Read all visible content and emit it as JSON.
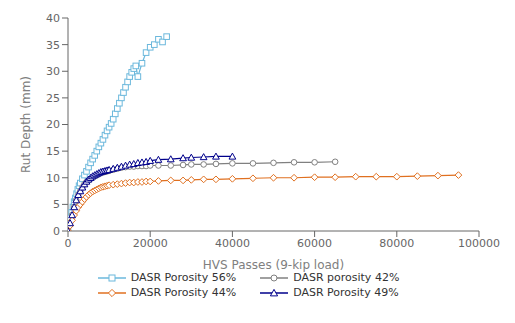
{
  "chart_data": {
    "type": "line",
    "xlabel": "HVS Passes (9-kip load)",
    "ylabel": "Rut Depth (mm)",
    "xlim": [
      0,
      100000
    ],
    "ylim": [
      0,
      40
    ],
    "xticks": [
      0,
      20000,
      40000,
      60000,
      80000,
      100000
    ],
    "yticks": [
      0,
      5,
      10,
      15,
      20,
      25,
      30,
      35,
      40
    ],
    "grid": false,
    "legend": "bottom",
    "series": [
      {
        "name": "DASR Porosity 56%",
        "color": "#6BB8DC",
        "marker": "square",
        "x": [
          0,
          300,
          600,
          900,
          1200,
          1500,
          1800,
          2100,
          2400,
          2700,
          3000,
          3500,
          4000,
          4500,
          5000,
          5500,
          6000,
          6500,
          7000,
          7500,
          8000,
          8500,
          9000,
          9500,
          10000,
          10500,
          11000,
          11500,
          12000,
          12500,
          13000,
          13500,
          14000,
          14500,
          15000,
          15500,
          16000,
          16500,
          17000,
          18000,
          19000,
          20000,
          21000,
          22000,
          23000,
          24000
        ],
        "values": [
          0,
          1.5,
          2.5,
          3.5,
          4.5,
          5.5,
          6.2,
          7.0,
          7.8,
          8.5,
          9.0,
          9.8,
          10.5,
          11.2,
          12.0,
          12.8,
          13.5,
          14.2,
          15.0,
          15.8,
          16.5,
          17.2,
          18.0,
          18.8,
          19.5,
          20.2,
          21.0,
          22.0,
          23.0,
          24.0,
          25.0,
          26.0,
          27.0,
          28.0,
          29.0,
          29.8,
          30.5,
          31.0,
          29.0,
          31.5,
          33.5,
          34.5,
          35.0,
          36.0,
          35.5,
          36.5
        ]
      },
      {
        "name": "DASR porosity 42%",
        "color": "#808080",
        "marker": "circle",
        "x": [
          0,
          500,
          1000,
          1500,
          2000,
          2500,
          3000,
          3500,
          4000,
          4500,
          5000,
          5500,
          6000,
          6500,
          7000,
          7500,
          8000,
          8500,
          9000,
          9500,
          10000,
          11000,
          12000,
          13000,
          14000,
          15000,
          16000,
          17000,
          18000,
          19000,
          20000,
          22000,
          25000,
          28000,
          30000,
          33000,
          36000,
          40000,
          45000,
          50000,
          55000,
          60000,
          65000
        ],
        "values": [
          0,
          1.5,
          3.0,
          4.5,
          5.8,
          6.8,
          7.5,
          8.2,
          8.8,
          9.2,
          9.5,
          9.8,
          10.0,
          10.3,
          10.5,
          10.7,
          10.9,
          11.0,
          11.1,
          11.2,
          11.3,
          11.5,
          11.7,
          11.9,
          12.0,
          12.1,
          12.1,
          12.2,
          12.2,
          12.2,
          12.3,
          12.3,
          12.3,
          12.4,
          12.5,
          12.5,
          12.6,
          12.7,
          12.7,
          12.8,
          12.9,
          12.9,
          13.0
        ]
      },
      {
        "name": "DASR Porosity 44%",
        "color": "#E07020",
        "marker": "diamond",
        "x": [
          0,
          500,
          1000,
          1500,
          2000,
          2500,
          3000,
          3500,
          4000,
          4500,
          5000,
          5500,
          6000,
          6500,
          7000,
          7500,
          8000,
          8500,
          9000,
          9500,
          10000,
          11000,
          12000,
          13000,
          14000,
          15000,
          16000,
          17000,
          18000,
          19000,
          20000,
          22000,
          25000,
          28000,
          30000,
          33000,
          36000,
          40000,
          45000,
          50000,
          55000,
          60000,
          65000,
          70000,
          75000,
          80000,
          85000,
          90000,
          95000
        ],
        "values": [
          0,
          1.0,
          2.0,
          3.0,
          3.8,
          4.5,
          5.0,
          5.5,
          6.0,
          6.4,
          6.8,
          7.1,
          7.4,
          7.6,
          7.8,
          8.0,
          8.2,
          8.3,
          8.4,
          8.5,
          8.6,
          8.7,
          8.8,
          8.9,
          9.0,
          9.1,
          9.1,
          9.2,
          9.2,
          9.3,
          9.3,
          9.4,
          9.5,
          9.5,
          9.6,
          9.7,
          9.7,
          9.8,
          9.9,
          10.0,
          10.0,
          10.1,
          10.1,
          10.2,
          10.2,
          10.2,
          10.3,
          10.4,
          10.5
        ]
      },
      {
        "name": "DASR Porosity 49%",
        "color": "#00008B",
        "marker": "triangle",
        "x": [
          0,
          500,
          1000,
          1500,
          2000,
          2500,
          3000,
          3500,
          4000,
          4500,
          5000,
          5500,
          6000,
          6500,
          7000,
          7500,
          8000,
          8500,
          9000,
          9500,
          10000,
          11000,
          12000,
          13000,
          14000,
          15000,
          16000,
          17000,
          18000,
          19000,
          20000,
          22000,
          25000,
          28000,
          30000,
          33000,
          36000,
          40000
        ],
        "values": [
          0,
          1.5,
          3.0,
          4.5,
          5.8,
          6.8,
          7.5,
          8.2,
          8.8,
          9.3,
          9.7,
          10.0,
          10.3,
          10.5,
          10.7,
          10.9,
          11.1,
          11.2,
          11.3,
          11.4,
          11.5,
          11.7,
          11.9,
          12.1,
          12.3,
          12.5,
          12.6,
          12.8,
          12.9,
          13.0,
          13.2,
          13.4,
          13.5,
          13.7,
          13.8,
          13.9,
          14.0,
          14.0
        ]
      }
    ]
  }
}
